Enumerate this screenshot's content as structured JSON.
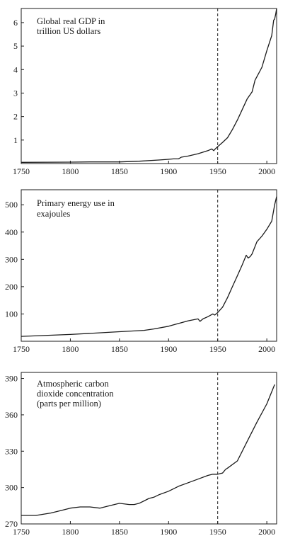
{
  "chart_data": [
    {
      "type": "line",
      "title_lines": [
        "Global real GDP in",
        "trillion US dollars"
      ],
      "xlim": [
        1750,
        2010
      ],
      "ylim": [
        0,
        6.6
      ],
      "xticks": [
        1750,
        1800,
        1850,
        1900,
        1950,
        2000
      ],
      "yticks": [
        1,
        2,
        3,
        4,
        5,
        6
      ],
      "marker_year": 1950,
      "x": [
        1750,
        1800,
        1820,
        1850,
        1870,
        1890,
        1900,
        1905,
        1910,
        1913,
        1920,
        1930,
        1940,
        1944,
        1946,
        1947,
        1950,
        1955,
        1960,
        1965,
        1970,
        1975,
        1980,
        1985,
        1988,
        1990,
        1995,
        2000,
        2005,
        2007,
        2008,
        2009,
        2010
      ],
      "values": [
        0.05,
        0.06,
        0.07,
        0.07,
        0.1,
        0.15,
        0.18,
        0.2,
        0.2,
        0.27,
        0.32,
        0.42,
        0.55,
        0.62,
        0.55,
        0.6,
        0.72,
        0.9,
        1.1,
        1.45,
        1.85,
        2.3,
        2.75,
        3.05,
        3.55,
        3.7,
        4.1,
        4.8,
        5.45,
        6.1,
        6.15,
        6.35,
        6.6
      ]
    },
    {
      "type": "line",
      "title_lines": [
        "Primary energy use in",
        "exajoules"
      ],
      "xlim": [
        1750,
        2010
      ],
      "ylim": [
        0,
        555
      ],
      "xticks": [
        1750,
        1800,
        1850,
        1900,
        1950,
        2000
      ],
      "yticks": [
        100,
        200,
        300,
        400,
        500
      ],
      "marker_year": 1950,
      "x": [
        1750,
        1800,
        1850,
        1875,
        1885,
        1900,
        1910,
        1920,
        1930,
        1932,
        1935,
        1940,
        1945,
        1947,
        1950,
        1955,
        1960,
        1965,
        1970,
        1975,
        1979,
        1981,
        1983,
        1985,
        1990,
        1995,
        2000,
        2005,
        2008,
        2010
      ],
      "values": [
        18,
        25,
        35,
        40,
        45,
        55,
        65,
        75,
        82,
        73,
        82,
        90,
        100,
        96,
        105,
        125,
        160,
        200,
        240,
        280,
        315,
        305,
        310,
        320,
        365,
        385,
        410,
        440,
        500,
        530
      ]
    },
    {
      "type": "line",
      "title_lines": [
        "Atmospheric carbon",
        "dioxide concentration",
        "(parts per million)"
      ],
      "xlim": [
        1750,
        2010
      ],
      "ylim": [
        270,
        395
      ],
      "xticks": [
        1750,
        1800,
        1850,
        1900,
        1950,
        2000
      ],
      "yticks": [
        270,
        300,
        330,
        360,
        390
      ],
      "marker_year": 1950,
      "x": [
        1750,
        1765,
        1780,
        1790,
        1800,
        1810,
        1820,
        1830,
        1835,
        1840,
        1850,
        1860,
        1865,
        1870,
        1875,
        1880,
        1885,
        1890,
        1900,
        1910,
        1920,
        1930,
        1940,
        1945,
        1950,
        1955,
        1958,
        1960,
        1970,
        1980,
        1990,
        2000,
        2008
      ],
      "values": [
        277,
        277,
        279,
        281,
        283,
        284,
        284,
        283,
        284,
        285,
        287,
        286,
        286,
        287,
        289,
        291,
        292,
        294,
        297,
        301,
        304,
        307,
        310,
        311,
        311,
        312,
        315,
        316,
        322,
        338,
        354,
        369,
        385
      ]
    }
  ]
}
